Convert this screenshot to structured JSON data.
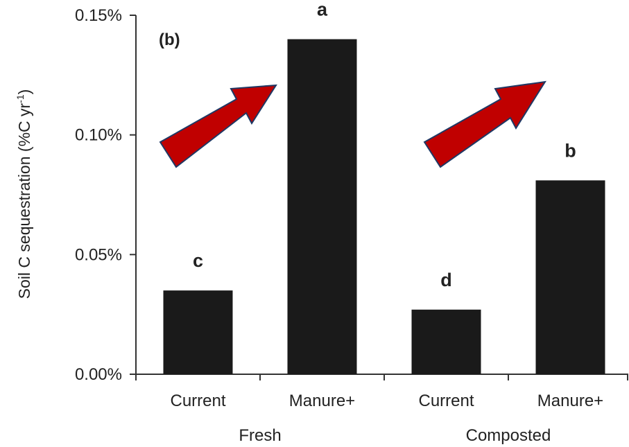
{
  "panel_label": "(b)",
  "chart_data": {
    "type": "bar",
    "categories": [
      "Current",
      "Manure+",
      "Current",
      "Manure+"
    ],
    "groups": [
      {
        "label": "Fresh",
        "categories": [
          "Current",
          "Manure+"
        ]
      },
      {
        "label": "Composted",
        "categories": [
          "Current",
          "Manure+"
        ]
      }
    ],
    "values": [
      0.035,
      0.14,
      0.027,
      0.081
    ],
    "significance_letters": [
      "c",
      "a",
      "d",
      "b"
    ],
    "ylabel": {
      "main": "Soil C sequestration  (%C yr",
      "sup": "-1",
      "end": ")"
    },
    "ylim": [
      0,
      0.15
    ],
    "yticks": [
      {
        "value": 0,
        "label": "0.00%"
      },
      {
        "value": 0.05,
        "label": "0.05%"
      },
      {
        "value": 0.1,
        "label": "0.10%"
      },
      {
        "value": 0.15,
        "label": "0.15%"
      }
    ],
    "bar_color": "#1a1a1a",
    "arrow_color": "#c00000",
    "arrow_outline": "#1f3864",
    "grid": false,
    "legend": "none"
  }
}
